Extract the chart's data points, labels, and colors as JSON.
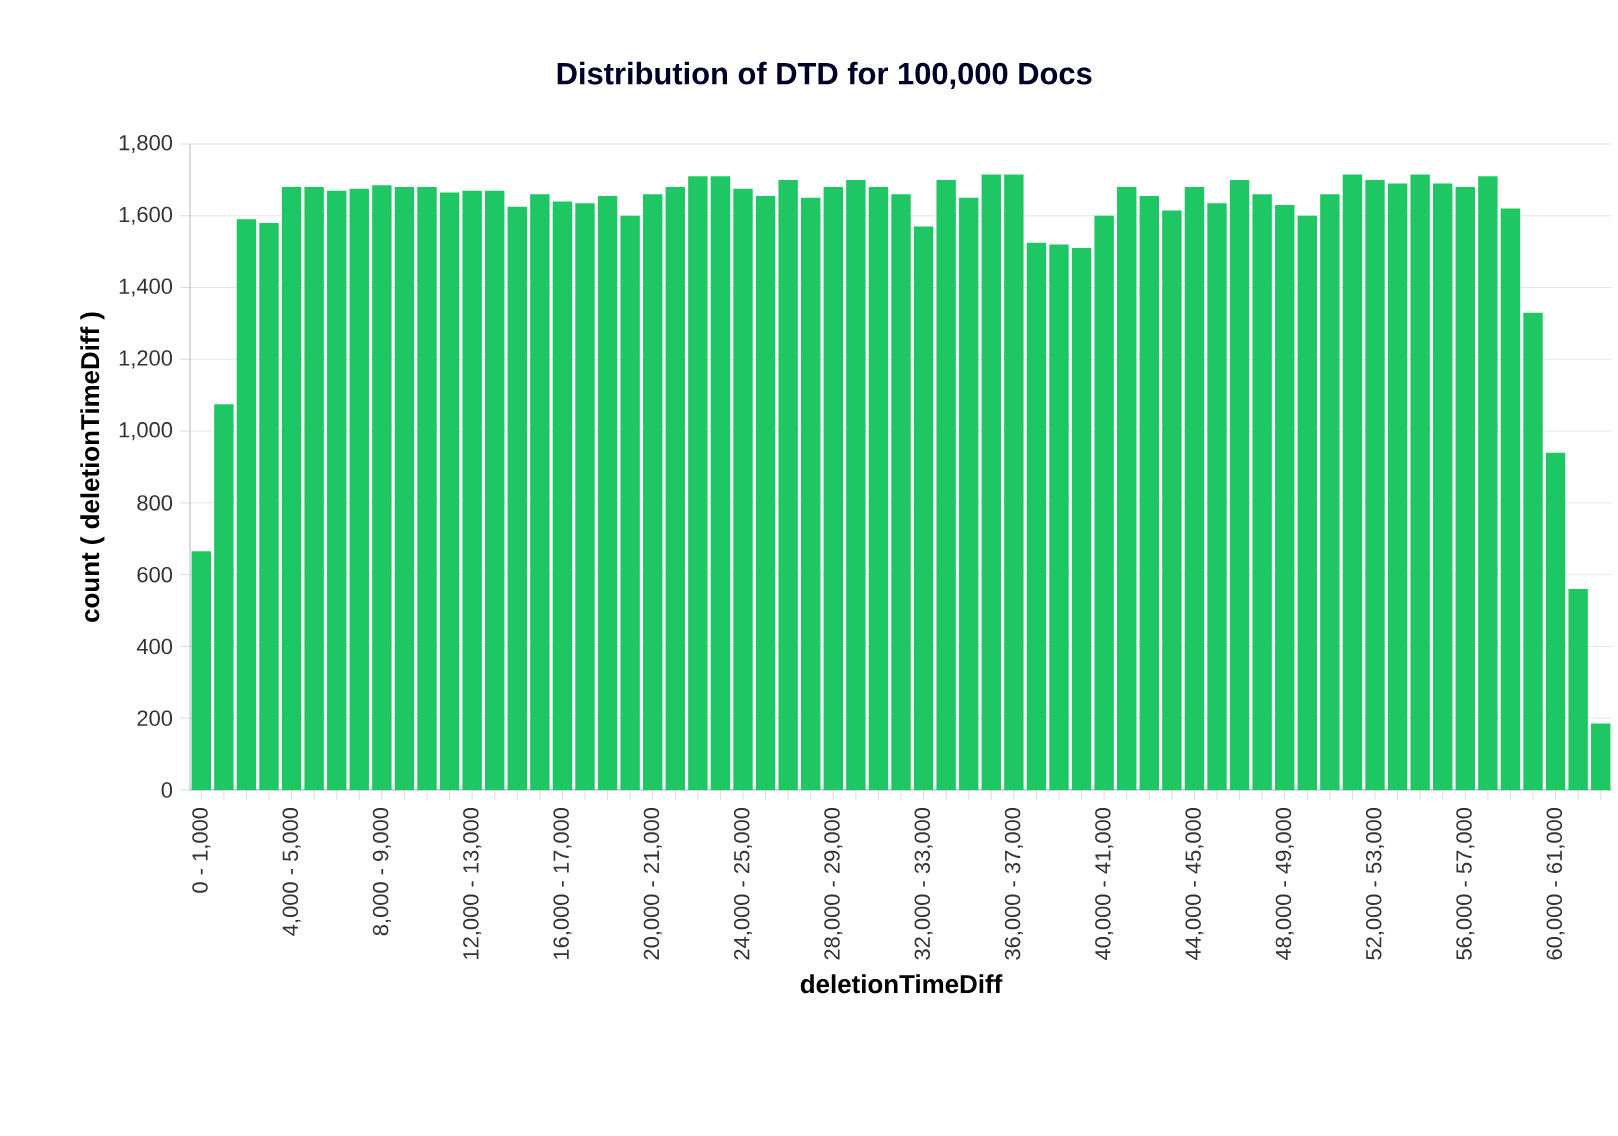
{
  "chart_data": {
    "type": "bar",
    "title": "Distribution of DTD for 100,000 Docs",
    "xlabel": "deletionTimeDiff",
    "ylabel": "count ( deletionTimeDiff )",
    "categories": [
      "0 - 1,000",
      null,
      null,
      null,
      "4,000 - 5,000",
      null,
      null,
      null,
      "8,000 - 9,000",
      null,
      null,
      null,
      "12,000 - 13,000",
      null,
      null,
      null,
      "16,000 - 17,000",
      null,
      null,
      null,
      "20,000 - 21,000",
      null,
      null,
      null,
      "24,000 - 25,000",
      null,
      null,
      null,
      "28,000 - 29,000",
      null,
      null,
      null,
      "32,000 - 33,000",
      null,
      null,
      null,
      "36,000 - 37,000",
      null,
      null,
      null,
      "40,000 - 41,000",
      null,
      null,
      null,
      "44,000 - 45,000",
      null,
      null,
      null,
      "48,000 - 49,000",
      null,
      null,
      null,
      "52,000 - 53,000",
      null,
      null,
      null,
      "56,000 - 57,000",
      null,
      null,
      null,
      "60,000 - 61,000",
      null,
      null
    ],
    "values": [
      665,
      1075,
      1590,
      1580,
      1680,
      1680,
      1670,
      1675,
      1685,
      1680,
      1680,
      1665,
      1670,
      1670,
      1625,
      1660,
      1640,
      1635,
      1655,
      1600,
      1660,
      1680,
      1710,
      1710,
      1675,
      1655,
      1700,
      1650,
      1680,
      1700,
      1680,
      1660,
      1570,
      1700,
      1650,
      1715,
      1715,
      1525,
      1520,
      1510,
      1600,
      1680,
      1655,
      1615,
      1680,
      1635,
      1700,
      1660,
      1630,
      1600,
      1660,
      1715,
      1700,
      1690,
      1715,
      1690,
      1680,
      1710,
      1620,
      1330,
      940,
      560,
      185
    ],
    "color": "#1ec764",
    "ylim": [
      0,
      1800
    ],
    "yticks": [
      0,
      {
        "value": 200,
        "label": "200"
      },
      {
        "value": 400,
        "label": "400"
      },
      {
        "value": 600,
        "label": "600"
      },
      {
        "value": 800,
        "label": "800"
      },
      {
        "value": 1000,
        "label": "1,000"
      },
      {
        "value": 1200,
        "label": "1,200"
      },
      {
        "value": 1400,
        "label": "1,400"
      },
      {
        "value": 1600,
        "label": "1,600"
      },
      {
        "value": 1800,
        "label": "1,800"
      }
    ],
    "grid": "y"
  }
}
